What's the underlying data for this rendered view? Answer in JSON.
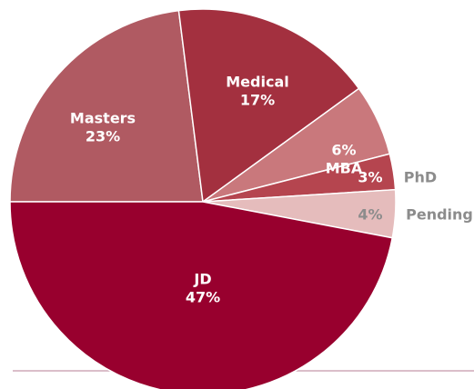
{
  "chart_data": {
    "type": "pie",
    "categories": [
      "Masters",
      "Medical",
      "MBA",
      "PhD",
      "Pending",
      "JD"
    ],
    "values": [
      23,
      17,
      6,
      3,
      4,
      47
    ],
    "value_labels": [
      "23%",
      "17%",
      "6%",
      "3%",
      "4%",
      "47%"
    ],
    "colors": [
      "#b05a62",
      "#a3303f",
      "#c9787c",
      "#b5454f",
      "#e5bcbc",
      "#98002e"
    ],
    "start_angle": 270
  }
}
